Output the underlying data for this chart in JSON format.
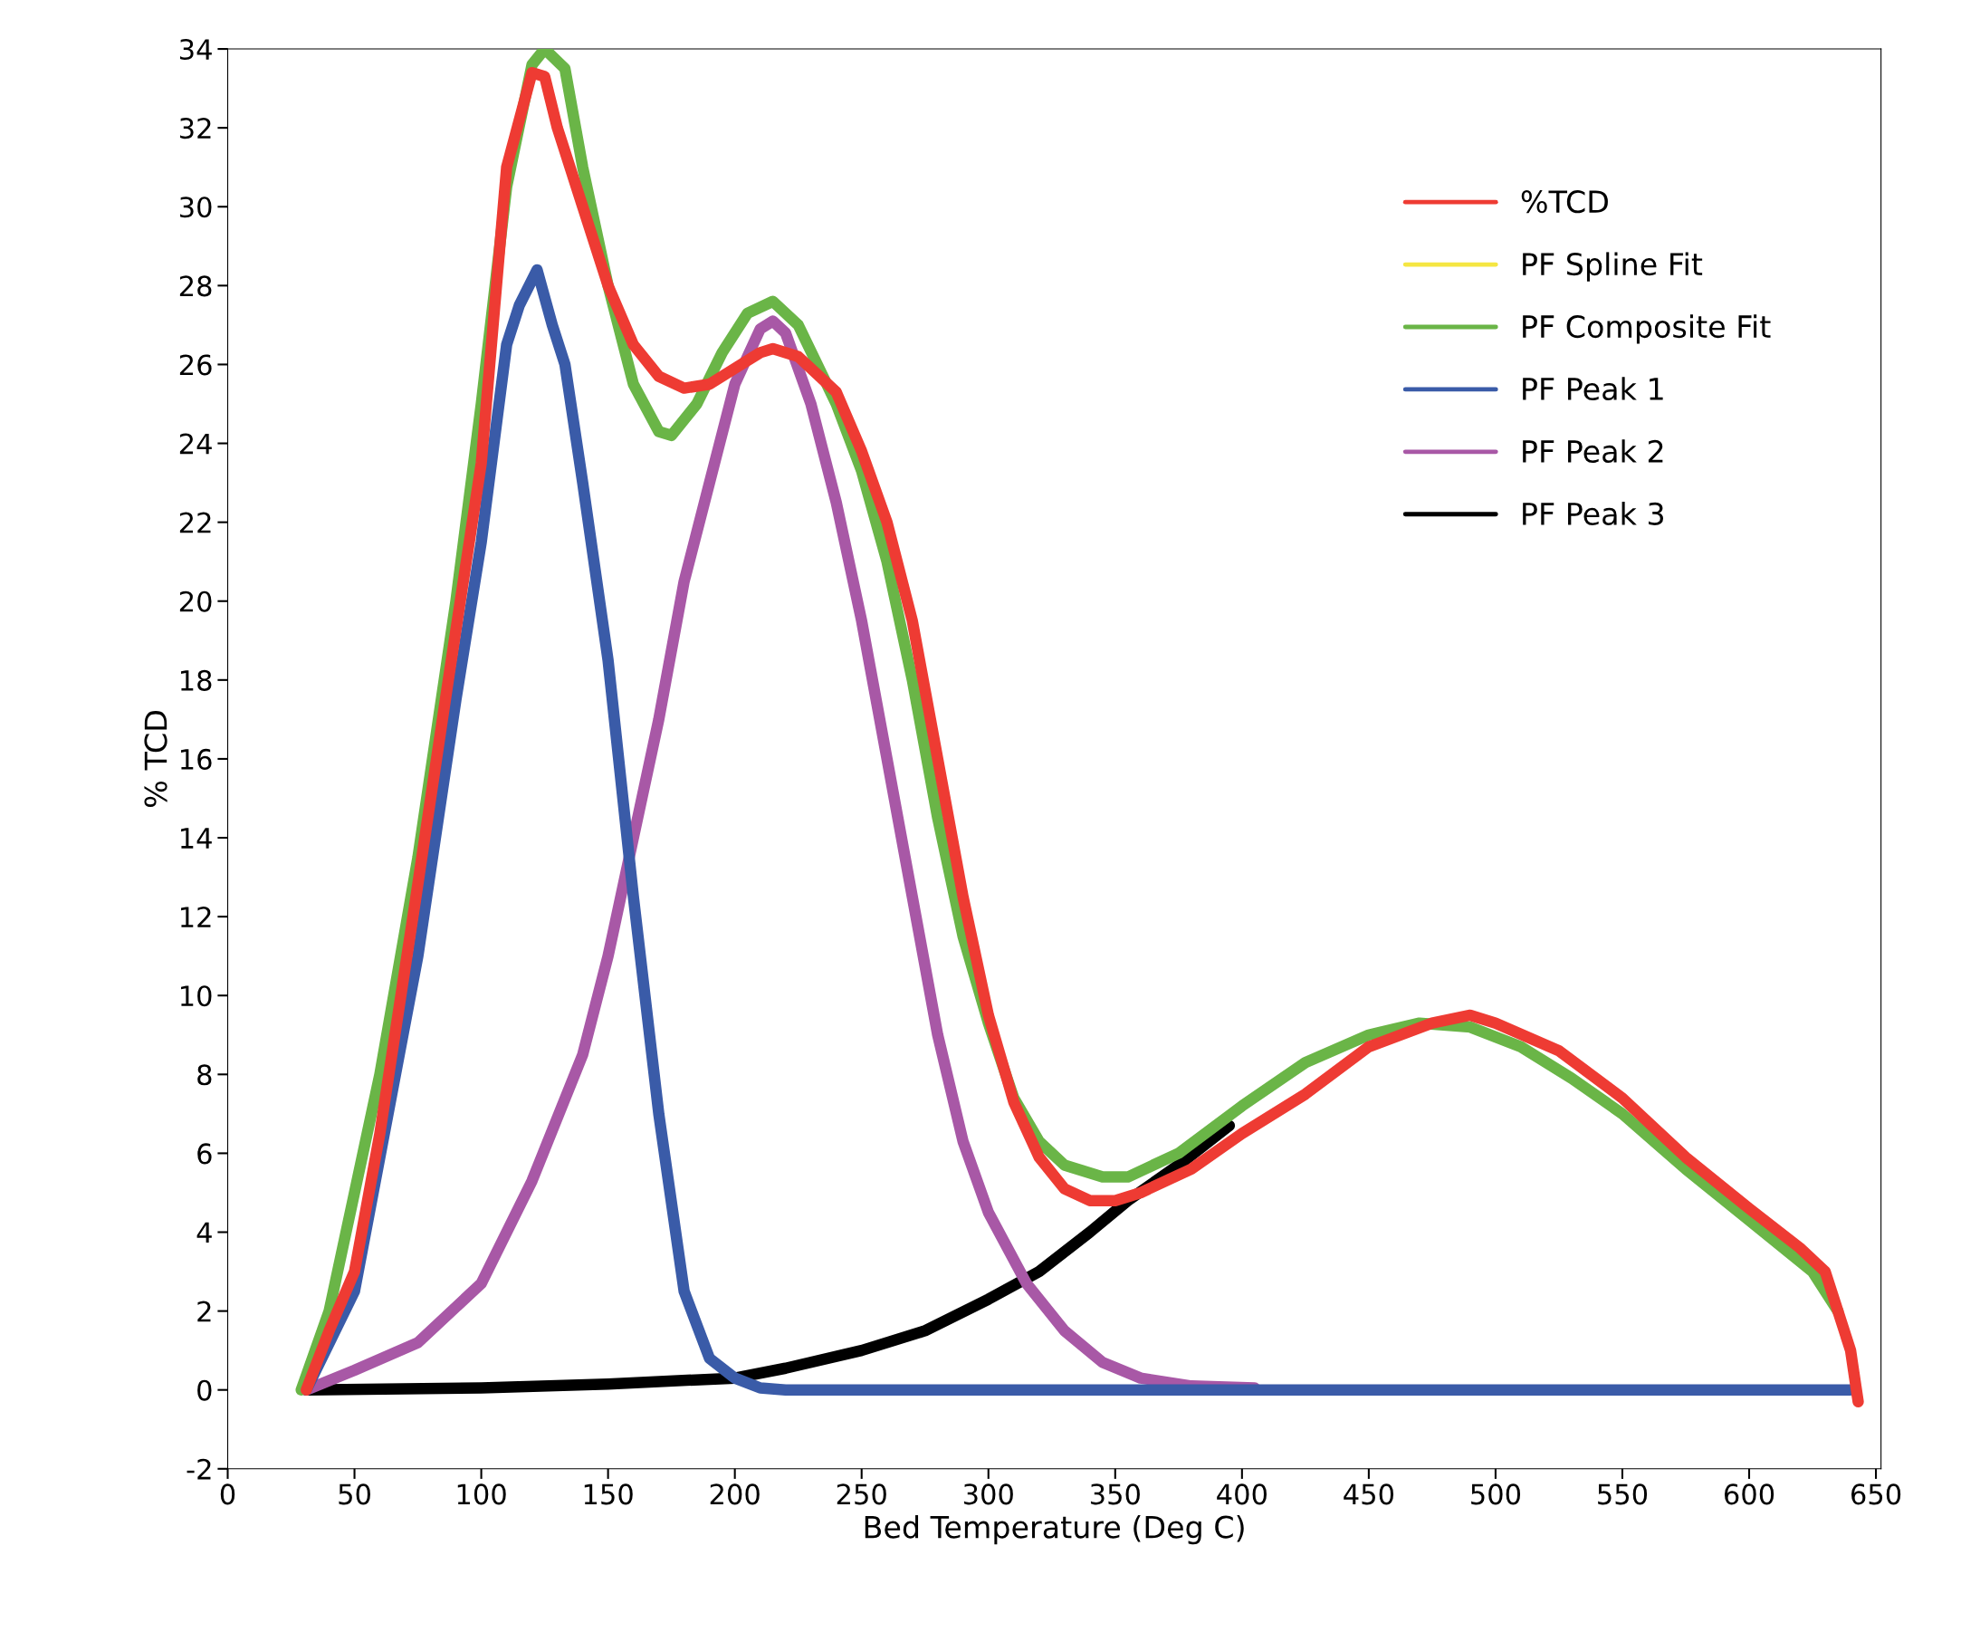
{
  "chart_data": {
    "type": "line",
    "xlabel": "Bed Temperature (Deg C)",
    "ylabel": "% TCD",
    "xlim": [
      0,
      652
    ],
    "ylim": [
      -2,
      34
    ],
    "xticks": [
      0,
      50,
      100,
      150,
      200,
      250,
      300,
      350,
      400,
      450,
      500,
      550,
      600,
      650
    ],
    "yticks": [
      -2,
      0,
      2,
      4,
      6,
      8,
      10,
      12,
      14,
      16,
      18,
      20,
      22,
      24,
      26,
      28,
      30,
      32,
      34
    ],
    "grid": false,
    "legend": "top right",
    "marker": "none",
    "line_style": "solid",
    "series": [
      {
        "name": "%TCD",
        "color": "#ee3b33",
        "x": [
          31,
          40,
          50,
          60,
          74,
          87,
          100,
          110,
          120,
          125,
          130,
          140,
          150,
          160,
          170,
          180,
          190,
          200,
          210,
          215,
          225,
          240,
          250,
          260,
          270,
          280,
          290,
          300,
          310,
          320,
          330,
          340,
          350,
          360,
          380,
          400,
          425,
          450,
          475,
          490,
          500,
          525,
          550,
          575,
          600,
          620,
          630,
          640,
          643
        ],
        "values": [
          0,
          1.5,
          3,
          6.5,
          12.4,
          18,
          23.5,
          31,
          33.4,
          33.3,
          32,
          30,
          28,
          26.5,
          25.7,
          25.4,
          25.5,
          25.9,
          26.3,
          26.4,
          26.2,
          25.3,
          23.8,
          22,
          19.5,
          16,
          12.5,
          9.5,
          7.3,
          5.9,
          5.1,
          4.8,
          4.8,
          5.0,
          5.6,
          6.5,
          7.5,
          8.7,
          9.3,
          9.5,
          9.3,
          8.6,
          7.4,
          5.9,
          4.6,
          3.6,
          3.0,
          1.0,
          -0.3
        ]
      },
      {
        "name": "PF Spline Fit",
        "color": "#f5e642"
      },
      {
        "name": "PF Composite Fit",
        "color": "#6ab547",
        "x": [
          29,
          40,
          50,
          60,
          75,
          90,
          100,
          110,
          120,
          125,
          133,
          140,
          150,
          160,
          170,
          175,
          185,
          195,
          205,
          215,
          225,
          240,
          250,
          260,
          270,
          280,
          290,
          300,
          310,
          320,
          330,
          345,
          355,
          375,
          400,
          425,
          450,
          470,
          490,
          510,
          530,
          550,
          575,
          600,
          625,
          635
        ],
        "values": [
          0,
          2,
          5,
          8,
          13.5,
          20,
          25,
          30.5,
          33.6,
          34,
          33.5,
          31,
          28,
          25.5,
          24.3,
          24.2,
          25,
          26.3,
          27.3,
          27.6,
          27,
          25,
          23.3,
          21,
          18,
          14.5,
          11.5,
          9.3,
          7.4,
          6.3,
          5.7,
          5.4,
          5.4,
          6.0,
          7.2,
          8.3,
          9.0,
          9.3,
          9.2,
          8.7,
          7.9,
          7.0,
          5.6,
          4.3,
          3.0,
          2.0
        ]
      },
      {
        "name": "PF Peak 1",
        "color": "#3a5ba8",
        "x": [
          31,
          50,
          75,
          90,
          100,
          110,
          115,
          122,
          128,
          133,
          140,
          150,
          160,
          170,
          180,
          190,
          200,
          210,
          220,
          640
        ],
        "values": [
          0,
          2.5,
          11,
          17.5,
          21.5,
          26.5,
          27.5,
          28.4,
          27,
          26,
          23,
          18.5,
          12.5,
          7,
          2.5,
          0.8,
          0.3,
          0.05,
          0,
          0
        ]
      },
      {
        "name": "PF Peak 2",
        "color": "#a858a6",
        "x": [
          31,
          50,
          75,
          100,
          120,
          140,
          150,
          160,
          170,
          180,
          190,
          200,
          210,
          215,
          220,
          230,
          240,
          250,
          260,
          270,
          280,
          290,
          300,
          315,
          330,
          345,
          360,
          380,
          405
        ],
        "values": [
          0,
          0.5,
          1.2,
          2.7,
          5.3,
          8.5,
          11,
          14,
          17,
          20.5,
          23,
          25.5,
          26.9,
          27.1,
          26.8,
          25,
          22.5,
          19.5,
          16,
          12.5,
          9,
          6.3,
          4.5,
          2.7,
          1.5,
          0.7,
          0.3,
          0.1,
          0.05
        ]
      },
      {
        "name": "PF Peak 3",
        "color": "#000000",
        "x": [
          31,
          100,
          150,
          200,
          220,
          250,
          275,
          300,
          320,
          340,
          355,
          375,
          395
        ],
        "values": [
          0,
          0.05,
          0.15,
          0.3,
          0.55,
          1.0,
          1.5,
          2.3,
          3.0,
          4.0,
          4.8,
          5.7,
          6.7
        ]
      }
    ]
  }
}
